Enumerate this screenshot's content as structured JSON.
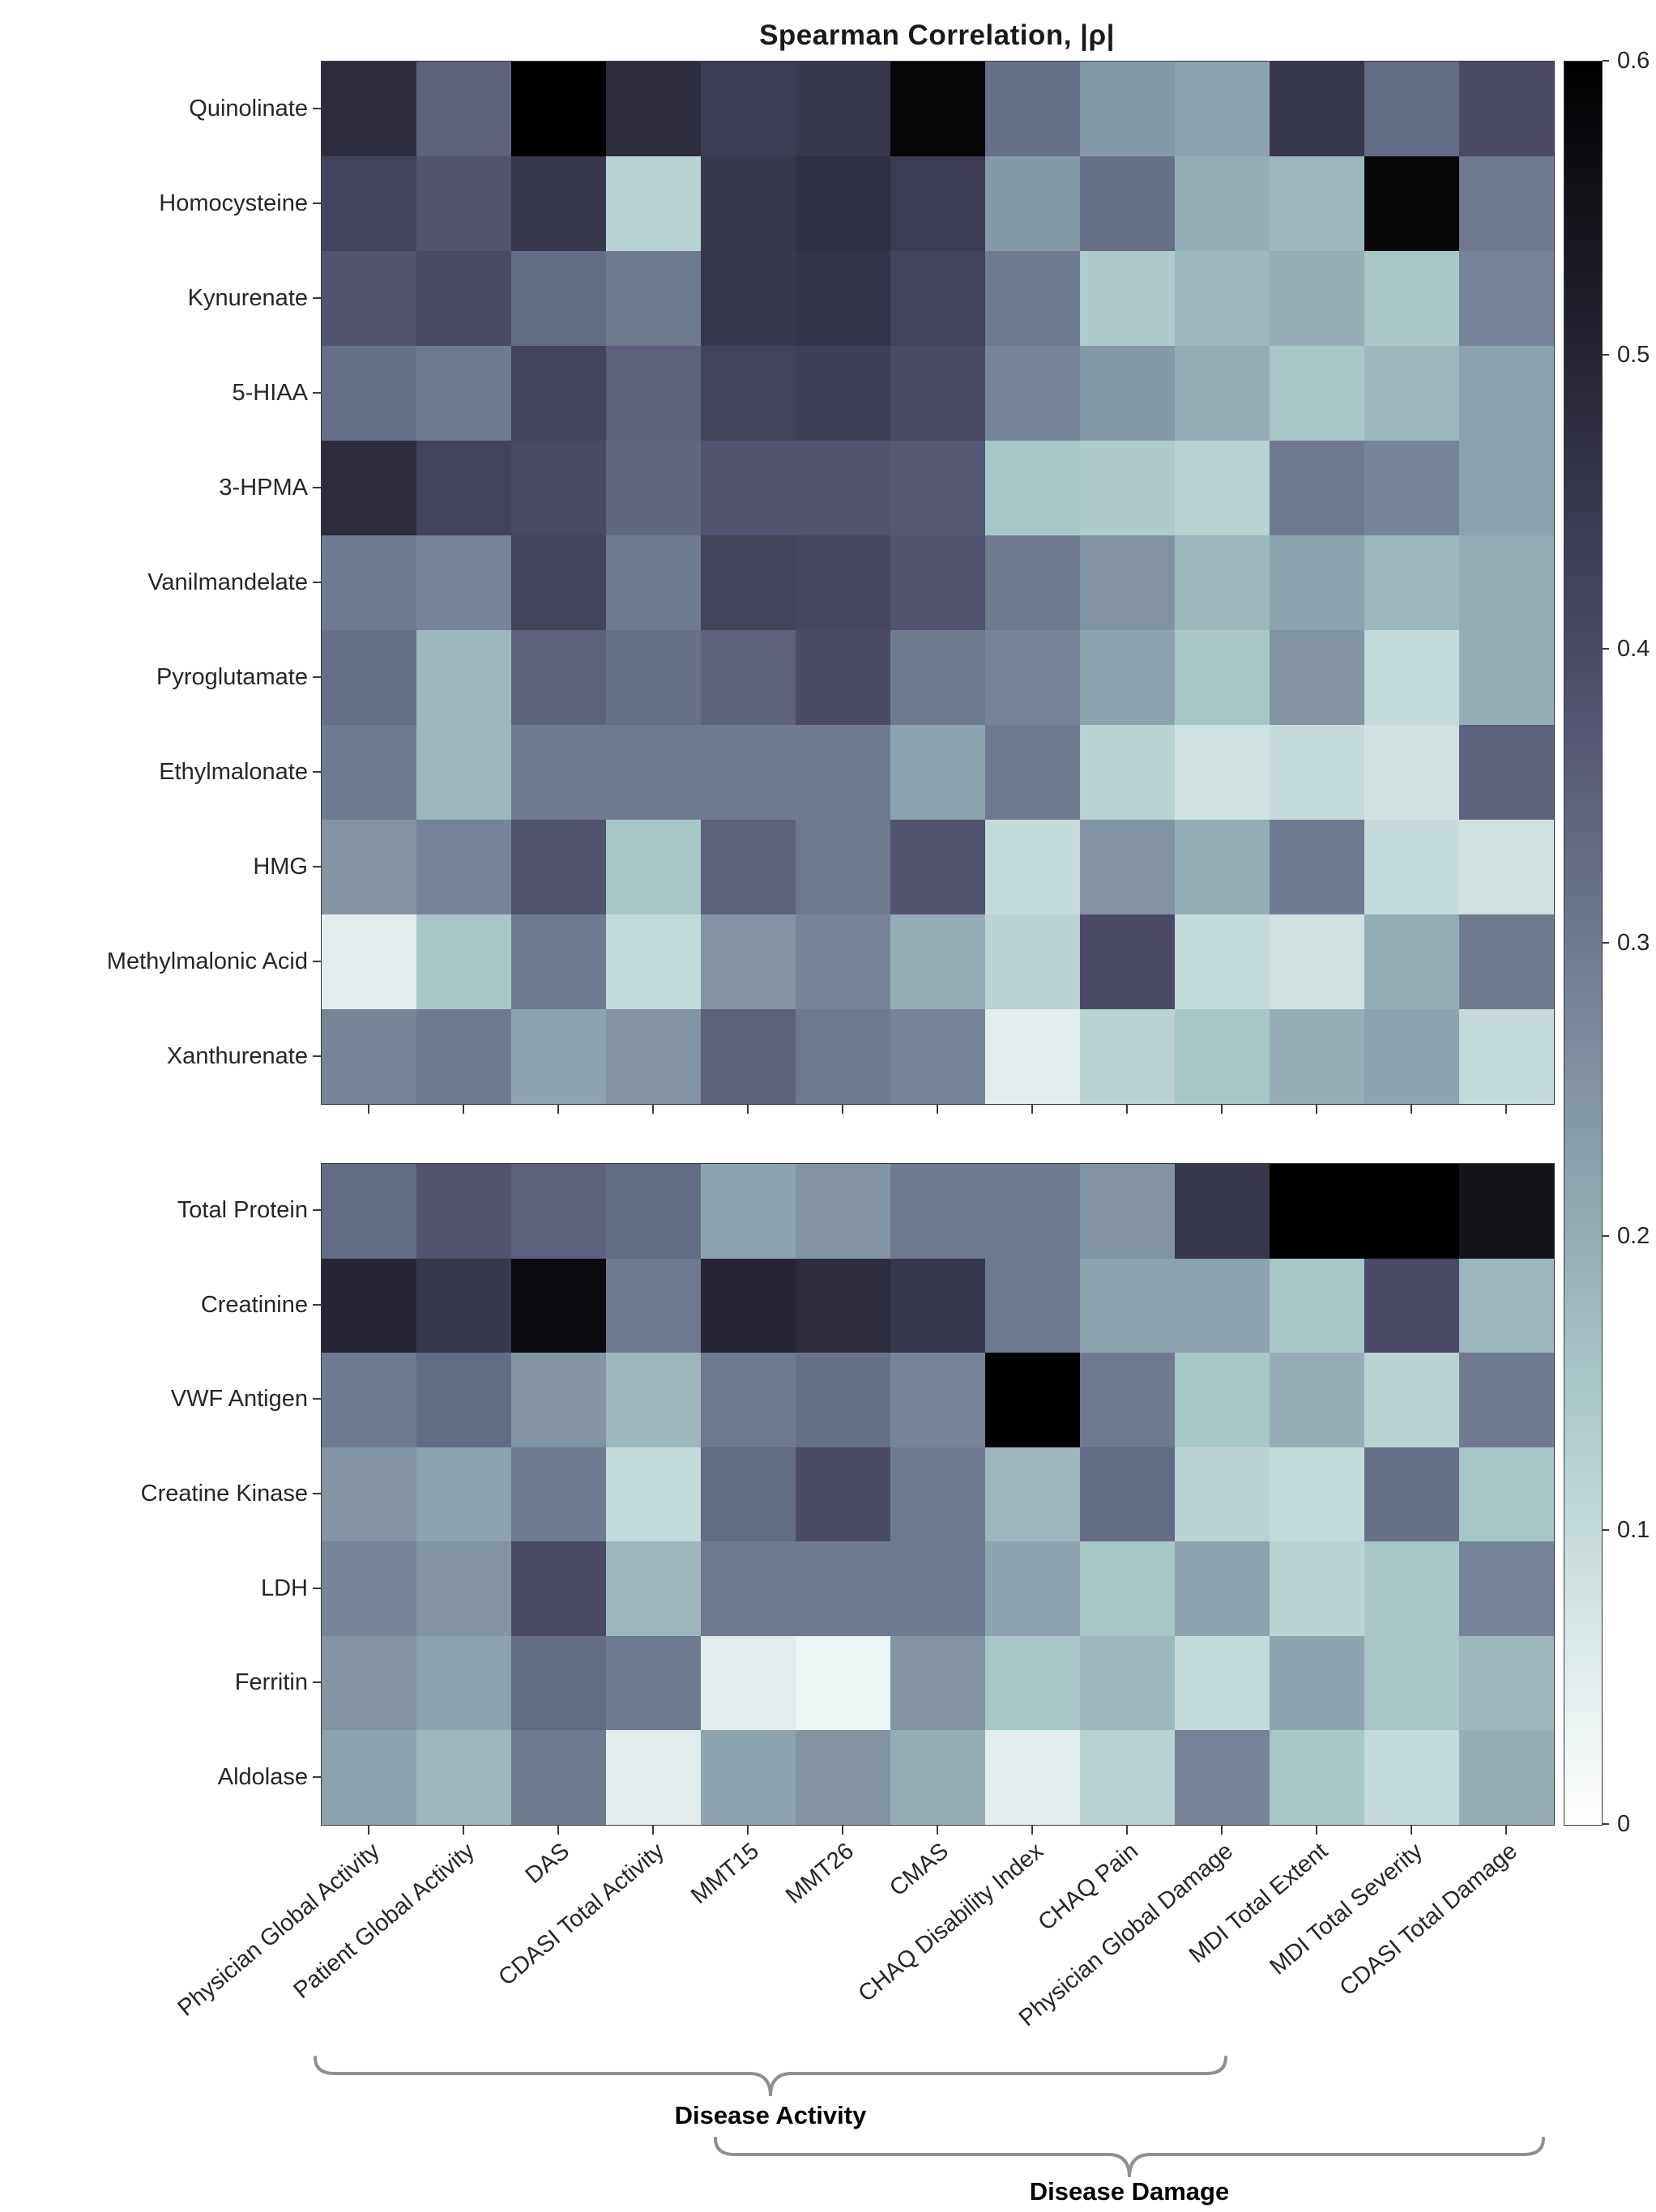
{
  "chart_data": {
    "type": "heatmap",
    "title": "Spearman Correlation, |ρ|",
    "colormap": "bone-reversed-white-to-black",
    "vmin": 0,
    "vmax": 0.6,
    "colorbar_ticks": [
      0,
      0.1,
      0.2,
      0.3,
      0.4,
      0.5,
      0.6
    ],
    "colorbar_position": "right",
    "columns": [
      "Physician Global Activity",
      "Patient Global Activity",
      "DAS",
      "CDASI Total Activity",
      "MMT15",
      "MMT26",
      "CMAS",
      "CHAQ Disability Index",
      "CHAQ Pain",
      "Physician Global Damage",
      "MDI Total Extent",
      "MDI Total Severity",
      "CDASI Total Damage"
    ],
    "panels": [
      {
        "name": "urine-metabolites",
        "rows": [
          "Quinolinate",
          "Homocysteine",
          "Kynurenate",
          "5-HIAA",
          "3-HPMA",
          "Vanilmandelate",
          "Pyroglutamate",
          "Ethylmalonate",
          "HMG",
          "Methylmalonic Acid",
          "Xanthurenate"
        ],
        "values": [
          [
            0.48,
            0.35,
            0.6,
            0.48,
            0.44,
            0.45,
            0.58,
            0.32,
            0.24,
            0.22,
            0.45,
            0.33,
            0.4
          ],
          [
            0.42,
            0.38,
            0.45,
            0.12,
            0.45,
            0.47,
            0.44,
            0.24,
            0.32,
            0.2,
            0.18,
            0.58,
            0.3
          ],
          [
            0.38,
            0.4,
            0.33,
            0.3,
            0.45,
            0.46,
            0.42,
            0.3,
            0.14,
            0.18,
            0.2,
            0.15,
            0.28
          ],
          [
            0.32,
            0.3,
            0.42,
            0.35,
            0.42,
            0.43,
            0.4,
            0.28,
            0.24,
            0.2,
            0.15,
            0.18,
            0.22
          ],
          [
            0.48,
            0.42,
            0.4,
            0.34,
            0.38,
            0.38,
            0.37,
            0.15,
            0.14,
            0.12,
            0.3,
            0.28,
            0.22
          ],
          [
            0.3,
            0.28,
            0.42,
            0.3,
            0.42,
            0.41,
            0.38,
            0.3,
            0.25,
            0.18,
            0.22,
            0.18,
            0.2
          ],
          [
            0.32,
            0.18,
            0.35,
            0.32,
            0.35,
            0.4,
            0.3,
            0.28,
            0.22,
            0.15,
            0.25,
            0.1,
            0.2
          ],
          [
            0.3,
            0.18,
            0.3,
            0.3,
            0.3,
            0.3,
            0.22,
            0.3,
            0.12,
            0.08,
            0.1,
            0.08,
            0.35
          ],
          [
            0.25,
            0.28,
            0.38,
            0.15,
            0.35,
            0.3,
            0.38,
            0.1,
            0.25,
            0.2,
            0.3,
            0.1,
            0.08
          ],
          [
            0.05,
            0.15,
            0.3,
            0.1,
            0.25,
            0.28,
            0.2,
            0.12,
            0.4,
            0.1,
            0.08,
            0.2,
            0.3
          ],
          [
            0.28,
            0.3,
            0.22,
            0.25,
            0.35,
            0.3,
            0.28,
            0.05,
            0.12,
            0.15,
            0.2,
            0.22,
            0.1
          ]
        ]
      },
      {
        "name": "clinical-labs",
        "rows": [
          "Total Protein",
          "Creatinine",
          "VWF Antigen",
          "Creatine Kinase",
          "LDH",
          "Ferritin",
          "Aldolase"
        ],
        "values": [
          [
            0.33,
            0.38,
            0.35,
            0.33,
            0.22,
            0.25,
            0.3,
            0.3,
            0.25,
            0.45,
            0.6,
            0.6,
            0.55
          ],
          [
            0.5,
            0.45,
            0.57,
            0.3,
            0.5,
            0.48,
            0.45,
            0.3,
            0.22,
            0.22,
            0.15,
            0.4,
            0.18
          ],
          [
            0.3,
            0.33,
            0.25,
            0.18,
            0.3,
            0.32,
            0.28,
            0.6,
            0.3,
            0.15,
            0.2,
            0.12,
            0.3
          ],
          [
            0.25,
            0.22,
            0.3,
            0.1,
            0.33,
            0.4,
            0.3,
            0.18,
            0.33,
            0.12,
            0.1,
            0.32,
            0.15
          ],
          [
            0.28,
            0.25,
            0.4,
            0.18,
            0.3,
            0.3,
            0.3,
            0.22,
            0.15,
            0.22,
            0.12,
            0.15,
            0.28
          ],
          [
            0.25,
            0.22,
            0.33,
            0.3,
            0.05,
            0.03,
            0.25,
            0.15,
            0.18,
            0.1,
            0.22,
            0.15,
            0.18
          ],
          [
            0.22,
            0.18,
            0.3,
            0.05,
            0.22,
            0.25,
            0.2,
            0.05,
            0.12,
            0.28,
            0.15,
            0.1,
            0.2
          ]
        ]
      }
    ],
    "groups": [
      {
        "label": "Disease Activity",
        "column_start": "Physician Global Activity",
        "column_end": "Physician Global Damage"
      },
      {
        "label": "Disease Damage",
        "column_start": "CHAQ Disability Index",
        "column_end": "CDASI Total Damage"
      }
    ]
  }
}
